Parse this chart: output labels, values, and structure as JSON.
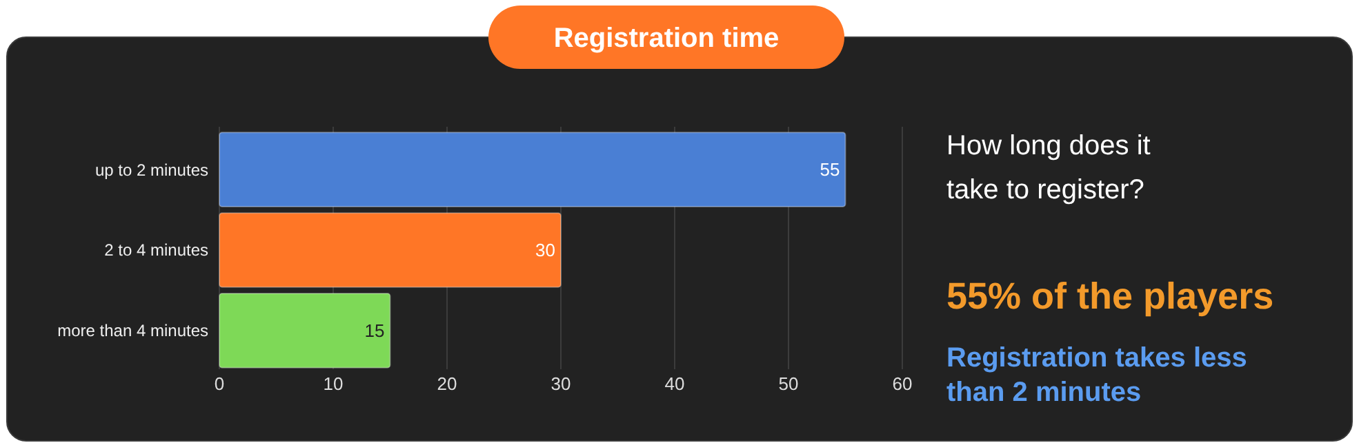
{
  "chart_data": {
    "type": "bar",
    "orientation": "horizontal",
    "title": "Registration time",
    "categories": [
      "up to 2 minutes",
      "2 to 4 minutes",
      "more than 4 minutes"
    ],
    "values": [
      55,
      30,
      15
    ],
    "colors": [
      "#4a7fd4",
      "#ff7626",
      "#7ed957"
    ],
    "xlim": [
      0,
      60
    ],
    "xticks": [
      0,
      10,
      20,
      30,
      40,
      50,
      60
    ],
    "grid": "x",
    "data_labels": true,
    "annotations": [
      "How long does it take to register?",
      "55% of the players",
      "Registration takes less than 2 minutes"
    ]
  }
}
